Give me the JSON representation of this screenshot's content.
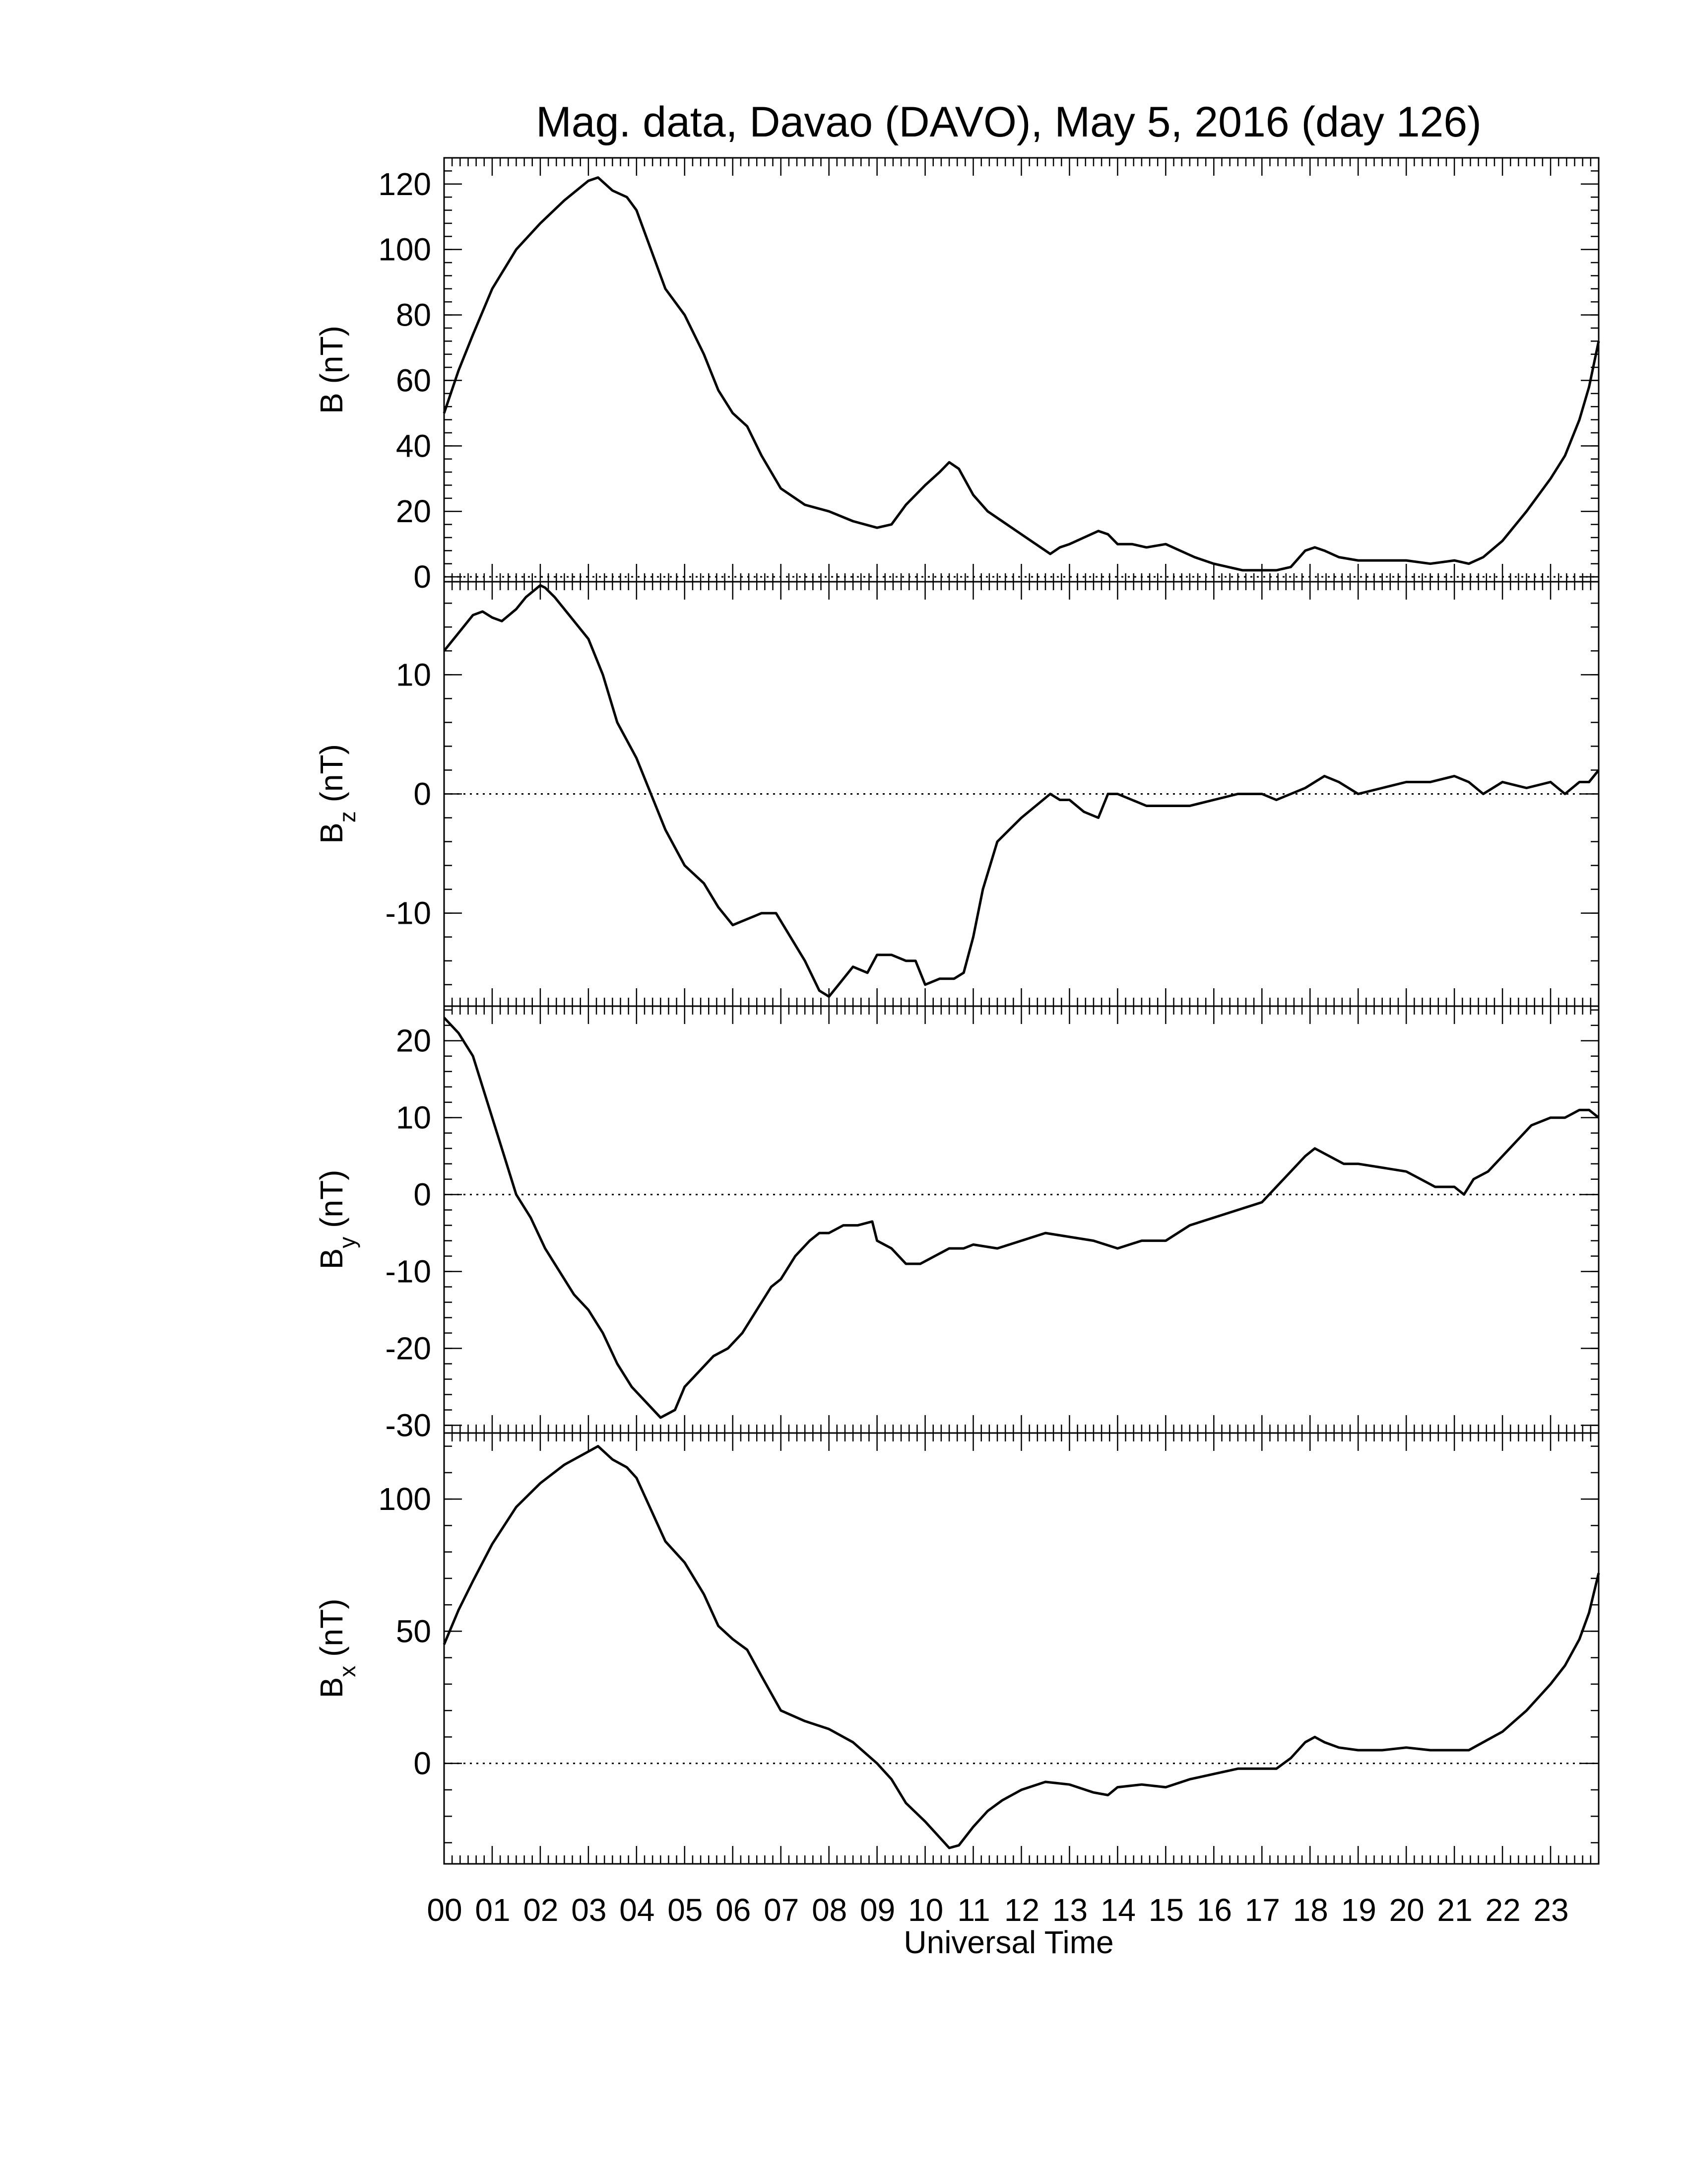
{
  "chart_data": {
    "type": "line",
    "title": "Mag. data, Davao (DAVO), May 5, 2016 (day 126)",
    "xlabel": "Universal Time",
    "x_tick_labels": [
      "00",
      "01",
      "02",
      "03",
      "04",
      "05",
      "06",
      "07",
      "08",
      "09",
      "10",
      "11",
      "12",
      "13",
      "14",
      "15",
      "16",
      "17",
      "18",
      "19",
      "20",
      "21",
      "22",
      "23"
    ],
    "xlim": [
      0,
      24
    ],
    "panels": [
      {
        "name": "B",
        "ylabel_main": "B",
        "ylabel_sub": "",
        "ylabel_unit": " (nT)",
        "ylim": [
          -1.5,
          128
        ],
        "yticks": [
          0,
          20,
          40,
          60,
          80,
          100,
          120
        ],
        "zero_line": true,
        "series": {
          "x": [
            0.0,
            0.3,
            0.6,
            1.0,
            1.5,
            2.0,
            2.5,
            3.0,
            3.2,
            3.5,
            3.8,
            4.0,
            4.3,
            4.6,
            5.0,
            5.4,
            5.7,
            6.0,
            6.3,
            6.6,
            7.0,
            7.5,
            8.0,
            8.5,
            9.0,
            9.3,
            9.6,
            10.0,
            10.3,
            10.5,
            10.7,
            11.0,
            11.3,
            11.6,
            12.0,
            12.3,
            12.6,
            12.8,
            13.0,
            13.3,
            13.6,
            13.8,
            14.0,
            14.3,
            14.6,
            15.0,
            15.3,
            15.6,
            16.0,
            16.3,
            16.6,
            17.0,
            17.3,
            17.6,
            17.9,
            18.1,
            18.3,
            18.6,
            19.0,
            19.5,
            20.0,
            20.5,
            21.0,
            21.3,
            21.6,
            22.0,
            22.5,
            23.0,
            23.3,
            23.6,
            23.8,
            24.0
          ],
          "y": [
            50,
            63,
            74,
            88,
            100,
            108,
            115,
            121,
            122,
            118,
            116,
            112,
            100,
            88,
            80,
            68,
            57,
            50,
            46,
            37,
            27,
            22,
            20,
            17,
            15,
            16,
            22,
            28,
            32,
            35,
            33,
            25,
            20,
            17,
            13,
            10,
            7,
            9,
            10,
            12,
            14,
            13,
            10,
            10,
            9,
            10,
            8,
            6,
            4,
            3,
            2,
            2,
            2,
            3,
            8,
            9,
            8,
            6,
            5,
            5,
            5,
            4,
            5,
            4,
            6,
            11,
            20,
            30,
            37,
            48,
            58,
            72
          ]
        }
      },
      {
        "name": "Bz",
        "ylabel_main": "B",
        "ylabel_sub": "z",
        "ylabel_unit": " (nT)",
        "ylim": [
          -17.8,
          17.8
        ],
        "yticks": [
          -10,
          0,
          10
        ],
        "zero_line": true,
        "series": {
          "x": [
            0.0,
            0.3,
            0.6,
            0.8,
            1.0,
            1.2,
            1.5,
            1.7,
            2.0,
            2.1,
            2.3,
            2.6,
            3.0,
            3.3,
            3.6,
            4.0,
            4.3,
            4.6,
            5.0,
            5.4,
            5.7,
            6.0,
            6.3,
            6.6,
            6.9,
            7.2,
            7.5,
            7.8,
            8.0,
            8.2,
            8.5,
            8.8,
            9.0,
            9.3,
            9.6,
            9.8,
            10.0,
            10.3,
            10.6,
            10.8,
            11.0,
            11.2,
            11.5,
            12.0,
            12.3,
            12.6,
            12.8,
            13.0,
            13.3,
            13.6,
            13.8,
            14.0,
            14.3,
            14.6,
            15.0,
            15.5,
            16.0,
            16.5,
            17.0,
            17.3,
            17.6,
            17.9,
            18.1,
            18.3,
            18.6,
            19.0,
            19.5,
            20.0,
            20.5,
            21.0,
            21.3,
            21.6,
            22.0,
            22.5,
            23.0,
            23.3,
            23.6,
            23.8,
            24.0
          ],
          "y": [
            12,
            13.5,
            15,
            15.3,
            14.8,
            14.5,
            15.5,
            16.5,
            17.5,
            17.3,
            16.5,
            15,
            13,
            10,
            6,
            3,
            0,
            -3,
            -6,
            -7.5,
            -9.5,
            -11,
            -10.5,
            -10,
            -10,
            -12,
            -14,
            -16.5,
            -17,
            -16,
            -14.5,
            -15,
            -13.5,
            -13.5,
            -14,
            -14,
            -16,
            -15.5,
            -15.5,
            -15,
            -12,
            -8,
            -4,
            -2,
            -1,
            0,
            -0.5,
            -0.5,
            -1.5,
            -2,
            0,
            0,
            -0.5,
            -1,
            -1,
            -1,
            -0.5,
            0,
            0,
            -0.5,
            0,
            0.5,
            1,
            1.5,
            1,
            0,
            0.5,
            1,
            1,
            1.5,
            1,
            0,
            1,
            0.5,
            1,
            0,
            1,
            1,
            2
          ]
        }
      },
      {
        "name": "By",
        "ylabel_main": "B",
        "ylabel_sub": "y",
        "ylabel_unit": " (nT)",
        "ylim": [
          -31,
          24.5
        ],
        "yticks": [
          -30,
          -20,
          -10,
          0,
          10,
          20
        ],
        "zero_line": true,
        "series": {
          "x": [
            0.0,
            0.3,
            0.6,
            0.9,
            1.2,
            1.5,
            1.8,
            2.1,
            2.4,
            2.7,
            3.0,
            3.3,
            3.6,
            3.9,
            4.2,
            4.5,
            4.8,
            5.0,
            5.3,
            5.6,
            5.9,
            6.2,
            6.5,
            6.8,
            7.0,
            7.3,
            7.6,
            7.8,
            8.0,
            8.3,
            8.6,
            8.9,
            9.0,
            9.3,
            9.6,
            9.9,
            10.2,
            10.5,
            10.8,
            11.0,
            11.5,
            12.0,
            12.5,
            13.0,
            13.5,
            14.0,
            14.5,
            15.0,
            15.5,
            16.0,
            16.5,
            17.0,
            17.3,
            17.6,
            17.9,
            18.1,
            18.4,
            18.7,
            19.0,
            19.5,
            20.0,
            20.3,
            20.6,
            21.0,
            21.2,
            21.4,
            21.7,
            22.0,
            22.3,
            22.6,
            23.0,
            23.3,
            23.6,
            23.8,
            24.0
          ],
          "y": [
            23,
            21,
            18,
            12,
            6,
            0,
            -3,
            -7,
            -10,
            -13,
            -15,
            -18,
            -22,
            -25,
            -27,
            -29,
            -28,
            -25,
            -23,
            -21,
            -20,
            -18,
            -15,
            -12,
            -11,
            -8,
            -6,
            -5,
            -5,
            -4,
            -4,
            -3.5,
            -6,
            -7,
            -9,
            -9,
            -8,
            -7,
            -7,
            -6.5,
            -7,
            -6,
            -5,
            -5.5,
            -6,
            -7,
            -6,
            -6,
            -4,
            -3,
            -2,
            -1,
            1,
            3,
            5,
            6,
            5,
            4,
            4,
            3.5,
            3,
            2,
            1,
            1,
            0,
            2,
            3,
            5,
            7,
            9,
            10,
            10,
            11,
            11,
            10
          ]
        }
      },
      {
        "name": "Bx",
        "ylabel_main": "B",
        "ylabel_sub": "x",
        "ylabel_unit": " (nT)",
        "ylim": [
          -38,
          125
        ],
        "yticks": [
          0,
          50,
          100
        ],
        "zero_line": true,
        "series": {
          "x": [
            0.0,
            0.3,
            0.6,
            1.0,
            1.5,
            2.0,
            2.5,
            3.0,
            3.2,
            3.5,
            3.8,
            4.0,
            4.3,
            4.6,
            5.0,
            5.4,
            5.7,
            6.0,
            6.3,
            6.6,
            7.0,
            7.5,
            8.0,
            8.5,
            9.0,
            9.3,
            9.6,
            10.0,
            10.3,
            10.5,
            10.7,
            11.0,
            11.3,
            11.6,
            12.0,
            12.5,
            13.0,
            13.5,
            13.8,
            14.0,
            14.5,
            15.0,
            15.5,
            16.0,
            16.5,
            17.0,
            17.3,
            17.6,
            17.9,
            18.1,
            18.3,
            18.6,
            19.0,
            19.5,
            20.0,
            20.5,
            21.0,
            21.3,
            21.6,
            22.0,
            22.5,
            23.0,
            23.3,
            23.6,
            23.8,
            24.0
          ],
          "y": [
            45,
            58,
            69,
            83,
            97,
            106,
            113,
            118,
            120,
            115,
            112,
            108,
            96,
            84,
            76,
            64,
            52,
            47,
            43,
            33,
            20,
            16,
            13,
            8,
            0,
            -6,
            -15,
            -22,
            -28,
            -32,
            -31,
            -24,
            -18,
            -14,
            -10,
            -7,
            -8,
            -11,
            -12,
            -9,
            -8,
            -9,
            -6,
            -4,
            -2,
            -2,
            -2,
            2,
            8,
            10,
            8,
            6,
            5,
            5,
            6,
            5,
            5,
            5,
            8,
            12,
            20,
            30,
            37,
            47,
            57,
            72
          ]
        }
      }
    ]
  }
}
